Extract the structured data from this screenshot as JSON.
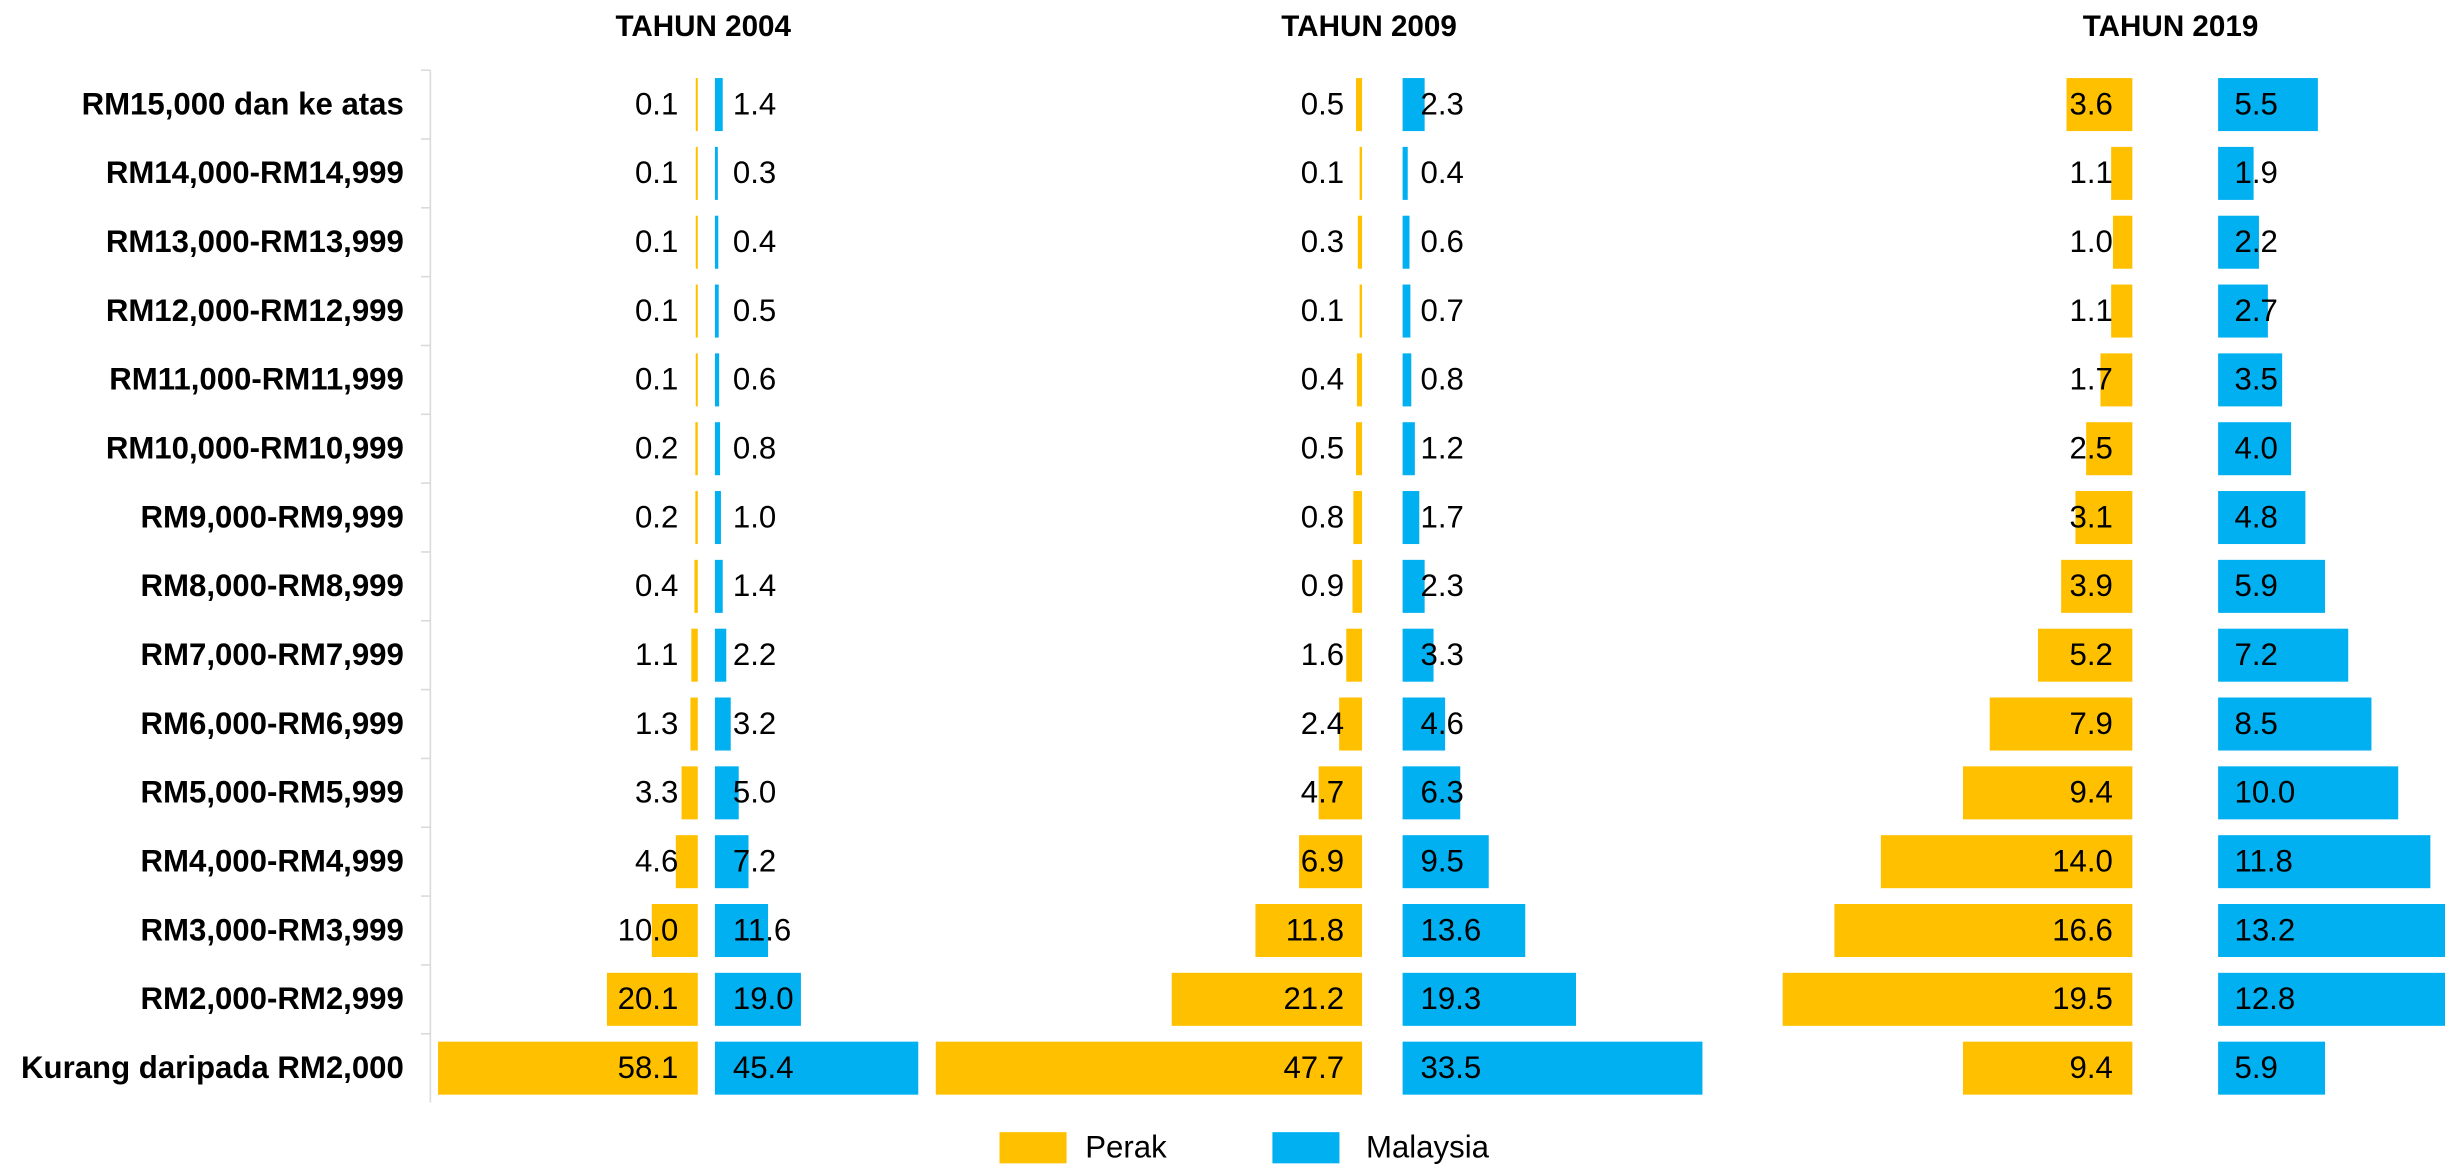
{
  "chart_data": {
    "type": "butterfly-bar",
    "categories": [
      "RM15,000 dan ke atas",
      "RM14,000-RM14,999",
      "RM13,000-RM13,999",
      "RM12,000-RM12,999",
      "RM11,000-RM11,999",
      "RM10,000-RM10,999",
      "RM9,000-RM9,999",
      "RM8,000-RM8,999",
      "RM7,000-RM7,999",
      "RM6,000-RM6,999",
      "RM5,000-RM5,999",
      "RM4,000-RM4,999",
      "RM3,000-RM3,999",
      "RM2,000-RM2,999",
      "Kurang daripada RM2,000"
    ],
    "panels": [
      {
        "title": "TAHUN 2004"
      },
      {
        "title": "TAHUN 2009"
      },
      {
        "title": "TAHUN 2019"
      }
    ],
    "series": [
      {
        "name": "Perak",
        "color": "#FFC000",
        "values": [
          [
            0.1,
            0.1,
            0.1,
            0.1,
            0.1,
            0.2,
            0.2,
            0.4,
            1.1,
            1.3,
            3.3,
            4.6,
            10.0,
            20.1,
            58.1
          ],
          [
            0.5,
            0.1,
            0.3,
            0.1,
            0.4,
            0.5,
            0.8,
            0.9,
            1.6,
            2.4,
            4.7,
            6.9,
            11.8,
            21.2,
            47.7
          ],
          [
            3.6,
            1.1,
            1.0,
            1.1,
            1.7,
            2.5,
            3.1,
            3.9,
            5.2,
            7.9,
            9.4,
            14.0,
            16.6,
            19.5,
            9.4
          ]
        ],
        "value_labels": [
          [
            "0.1",
            "0.1",
            "0.1",
            "0.1",
            "0.1",
            "0.2",
            "0.2",
            "0.4",
            "1.1",
            "1.3",
            "3.3",
            "4.6",
            "10.0",
            "20.1",
            "58.1"
          ],
          [
            "0.5",
            "0.1",
            "0.3",
            "0.1",
            "0.4",
            "0.5",
            "0.8",
            "0.9",
            "1.6",
            "2.4",
            "4.7",
            "6.9",
            "11.8",
            "21.2",
            "47.7"
          ],
          [
            "3.6",
            "1.1",
            "1.0",
            "1.1",
            "1.7",
            "2.5",
            "3.1",
            "3.9",
            "5.2",
            "7.9",
            "9.4",
            "14.0",
            "16.6",
            "19.5",
            "9.4"
          ]
        ]
      },
      {
        "name": "Malaysia",
        "color": "#00B0F0",
        "values": [
          [
            1.4,
            0.3,
            0.4,
            0.5,
            0.6,
            0.8,
            1.0,
            1.4,
            2.2,
            3.2,
            5.0,
            7.2,
            11.6,
            19.0,
            45.4
          ],
          [
            2.3,
            0.4,
            0.6,
            0.7,
            0.8,
            1.2,
            1.7,
            2.3,
            3.3,
            4.6,
            6.3,
            9.5,
            13.6,
            19.3,
            33.5
          ],
          [
            5.5,
            1.9,
            2.2,
            2.7,
            3.5,
            4.0,
            4.8,
            5.9,
            7.2,
            8.5,
            10.0,
            11.8,
            13.2,
            12.8,
            5.9
          ]
        ],
        "value_labels": [
          [
            "1.4",
            "0.3",
            "0.4",
            "0.5",
            "0.6",
            "0.8",
            "1.0",
            "1.4",
            "2.2",
            "3.2",
            "5.0",
            "7.2",
            "11.6",
            "19.0",
            "45.4"
          ],
          [
            "2.3",
            "0.4",
            "0.6",
            "0.7",
            "0.8",
            "1.2",
            "1.7",
            "2.3",
            "3.3",
            "4.6",
            "6.3",
            "9.5",
            "13.6",
            "19.3",
            "33.5"
          ],
          [
            "5.5",
            "1.9",
            "2.2",
            "2.7",
            "3.5",
            "4.0",
            "4.8",
            "5.9",
            "7.2",
            "8.5",
            "10.0",
            "11.8",
            "13.2",
            "12.8",
            "5.9"
          ]
        ]
      }
    ]
  }
}
